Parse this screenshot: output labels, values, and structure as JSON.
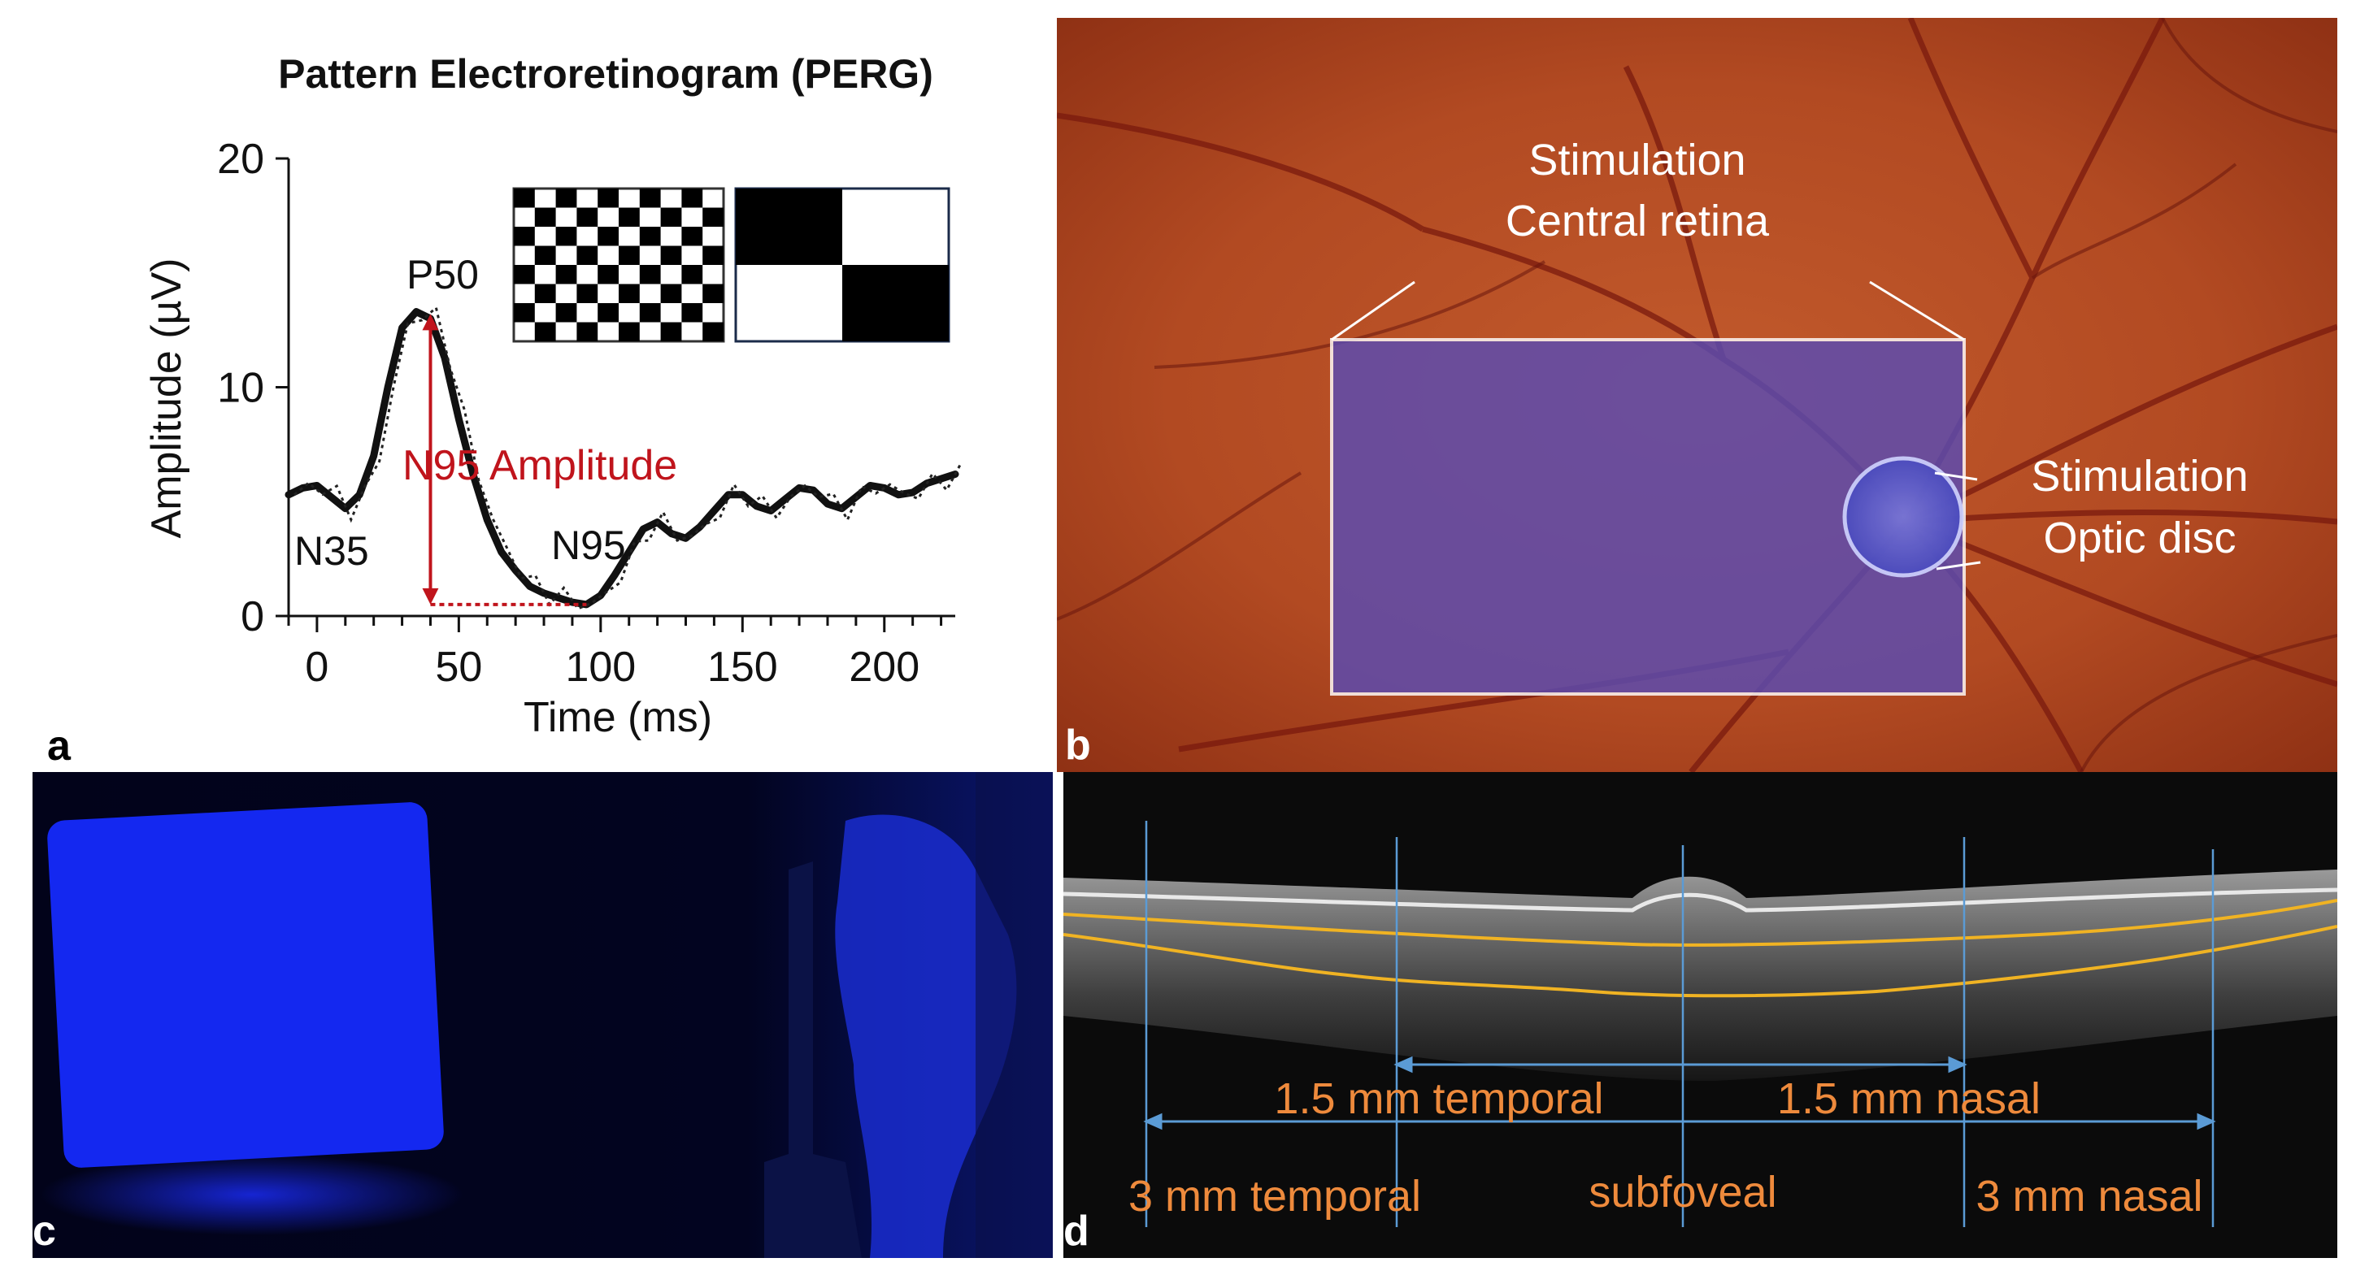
{
  "panel_a": {
    "letter": "a",
    "title": "Pattern Electroretinogram (PERG)",
    "peak_labels": {
      "p50": "P50",
      "n35": "N35",
      "n95": "N95"
    },
    "amplitude_label": "N95 Amplitude",
    "colors": {
      "trace": "#111111",
      "amplitude": "#c0141c"
    }
  },
  "chart_data": {
    "type": "line",
    "title": "Pattern Electroretinogram (PERG)",
    "xlabel": "Time (ms)",
    "ylabel": "Amplitude (µV)",
    "xlim": [
      -10,
      225
    ],
    "ylim": [
      0,
      20
    ],
    "x_ticks": [
      0,
      50,
      100,
      150,
      200
    ],
    "y_ticks": [
      0,
      10,
      20
    ],
    "grid": false,
    "series": [
      {
        "x": [
          -10,
          -5,
          0,
          5,
          10,
          15,
          20,
          25,
          30,
          35,
          40,
          45,
          50,
          55,
          60,
          65,
          70,
          75,
          80,
          85,
          90,
          95,
          100,
          105,
          110,
          115,
          120,
          125,
          130,
          135,
          140,
          145,
          150,
          155,
          160,
          165,
          170,
          175,
          180,
          185,
          190,
          195,
          200,
          205,
          210,
          215,
          220,
          225
        ],
        "y": [
          5.3,
          5.6,
          5.7,
          5.2,
          4.7,
          5.3,
          7.0,
          10.0,
          12.6,
          13.3,
          13.0,
          11.3,
          8.6,
          6.2,
          4.2,
          2.8,
          2.0,
          1.3,
          1.0,
          0.8,
          0.6,
          0.5,
          0.9,
          1.8,
          2.8,
          3.8,
          4.1,
          3.6,
          3.4,
          3.9,
          4.6,
          5.3,
          5.3,
          4.8,
          4.6,
          5.1,
          5.6,
          5.5,
          4.9,
          4.7,
          5.2,
          5.7,
          5.6,
          5.3,
          5.4,
          5.8,
          6.0,
          6.2
        ]
      }
    ],
    "annotations": [
      "P50",
      "N35",
      "N95",
      "N95 Amplitude"
    ]
  },
  "panel_b": {
    "letter": "b",
    "central_label": [
      "Stimulation",
      "Central retina"
    ],
    "disc_label": [
      "Stimulation",
      "Optic disc"
    ]
  },
  "panel_c": {
    "letter": "c"
  },
  "panel_d": {
    "letter": "d",
    "inner_left": "1.5 mm temporal",
    "inner_right": "1.5 mm nasal",
    "outer_left": "3 mm temporal",
    "center": "subfoveal",
    "outer_right": "3 mm nasal",
    "colors": {
      "layer_line": "#f0b323",
      "measure": "#5b9bd5",
      "text": "#ee8a3c"
    }
  }
}
